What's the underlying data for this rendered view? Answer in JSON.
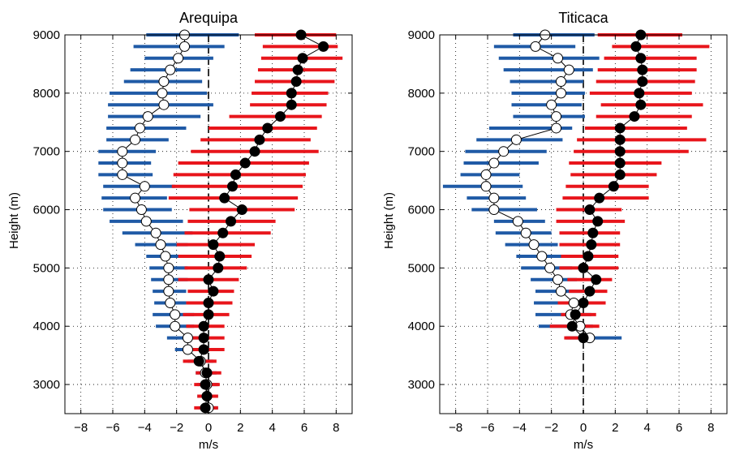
{
  "chart_data": [
    {
      "type": "scatter",
      "title": "Arequipa",
      "xlabel": "m/s",
      "ylabel": "Height (m)",
      "xlim": [
        -9,
        9
      ],
      "ylim": [
        2500,
        9000
      ],
      "xticks": [
        -8,
        -6,
        -4,
        -2,
        0,
        2,
        4,
        6,
        8
      ],
      "yticks": [
        3000,
        4000,
        5000,
        6000,
        7000,
        8000,
        9000
      ],
      "grid": true,
      "zero_line": "dashed",
      "series": [
        {
          "style": "open-circles-with-blue-bars",
          "color": "#1f5aa6",
          "points": [
            {
              "y": 9000,
              "x": -1.5,
              "lo": -3.9,
              "hi": 1.9
            },
            {
              "y": 8800,
              "x": -1.5,
              "lo": -4.7,
              "hi": 1.0
            },
            {
              "y": 8600,
              "x": -1.9,
              "lo": -4.0,
              "hi": 0.3
            },
            {
              "y": 8400,
              "x": -2.4,
              "lo": -4.9,
              "hi": -0.5
            },
            {
              "y": 8200,
              "x": -2.8,
              "lo": -5.3,
              "hi": -0.4
            },
            {
              "y": 8000,
              "x": -2.9,
              "lo": -6.2,
              "hi": -0.1
            },
            {
              "y": 7800,
              "x": -2.8,
              "lo": -6.3,
              "hi": 0.3
            },
            {
              "y": 7600,
              "x": -3.8,
              "lo": -6.3,
              "hi": -0.5
            },
            {
              "y": 7400,
              "x": -4.3,
              "lo": -6.4,
              "hi": -1.4
            },
            {
              "y": 7200,
              "x": -4.6,
              "lo": -6.4,
              "hi": -2.5
            },
            {
              "y": 7000,
              "x": -5.4,
              "lo": -6.9,
              "hi": -3.3
            },
            {
              "y": 6800,
              "x": -5.4,
              "lo": -6.9,
              "hi": -3.6
            },
            {
              "y": 6600,
              "x": -5.4,
              "lo": -6.9,
              "hi": -3.5
            },
            {
              "y": 6400,
              "x": -4.0,
              "lo": -6.6,
              "hi": -2.1
            },
            {
              "y": 6200,
              "x": -4.6,
              "lo": -6.7,
              "hi": -2.6
            },
            {
              "y": 6000,
              "x": -4.2,
              "lo": -6.6,
              "hi": -2.3
            },
            {
              "y": 5800,
              "x": -3.9,
              "lo": -6.2,
              "hi": -1.6
            },
            {
              "y": 5600,
              "x": -3.3,
              "lo": -5.4,
              "hi": -1.0
            },
            {
              "y": 5400,
              "x": -3.0,
              "lo": -4.6,
              "hi": -1.3
            },
            {
              "y": 5200,
              "x": -2.7,
              "lo": -3.9,
              "hi": -1.4
            },
            {
              "y": 5000,
              "x": -2.5,
              "lo": -3.7,
              "hi": -1.3
            },
            {
              "y": 4800,
              "x": -2.5,
              "lo": -3.6,
              "hi": -1.3
            },
            {
              "y": 4600,
              "x": -2.5,
              "lo": -3.5,
              "hi": -1.4
            },
            {
              "y": 4400,
              "x": -2.4,
              "lo": -3.4,
              "hi": -1.4
            },
            {
              "y": 4200,
              "x": -2.1,
              "lo": -3.5,
              "hi": -0.9
            },
            {
              "y": 4000,
              "x": -2.1,
              "lo": -3.3,
              "hi": -0.9
            },
            {
              "y": 3800,
              "x": -1.3,
              "lo": -2.6,
              "hi": -0.2
            },
            {
              "y": 3600,
              "x": -1.3,
              "lo": -2.1,
              "hi": -0.5
            },
            {
              "y": 3400,
              "x": -0.5,
              "lo": -1.3,
              "hi": 0.3
            },
            {
              "y": 3200,
              "x": -0.2,
              "lo": -0.8,
              "hi": 0.5
            },
            {
              "y": 3000,
              "x": -0.1,
              "lo": -0.7,
              "hi": 0.6
            },
            {
              "y": 2800,
              "x": -0.1,
              "lo": -0.7,
              "hi": 0.6
            },
            {
              "y": 2600,
              "x": 0.0,
              "lo": -0.6,
              "hi": 0.6
            }
          ]
        },
        {
          "style": "filled-circles-with-red-bars",
          "color": "#e8151b",
          "points": [
            {
              "y": 9000,
              "x": 5.8,
              "lo": 2.9,
              "hi": 8.0
            },
            {
              "y": 8800,
              "x": 7.2,
              "lo": 3.4,
              "hi": 8.1
            },
            {
              "y": 8600,
              "x": 5.9,
              "lo": 3.3,
              "hi": 8.4
            },
            {
              "y": 8400,
              "x": 5.6,
              "lo": 3.1,
              "hi": 8.0
            },
            {
              "y": 8200,
              "x": 5.5,
              "lo": 2.9,
              "hi": 7.9
            },
            {
              "y": 8000,
              "x": 5.2,
              "lo": 2.7,
              "hi": 7.5
            },
            {
              "y": 7800,
              "x": 5.2,
              "lo": 2.6,
              "hi": 7.4
            },
            {
              "y": 7600,
              "x": 4.5,
              "lo": 1.3,
              "hi": 7.1
            },
            {
              "y": 7400,
              "x": 3.7,
              "lo": 0.0,
              "hi": 6.8
            },
            {
              "y": 7200,
              "x": 3.2,
              "lo": -0.5,
              "hi": 6.4
            },
            {
              "y": 7000,
              "x": 2.9,
              "lo": -1.1,
              "hi": 6.9
            },
            {
              "y": 6800,
              "x": 2.3,
              "lo": -1.9,
              "hi": 6.3
            },
            {
              "y": 6600,
              "x": 1.7,
              "lo": -2.2,
              "hi": 6.1
            },
            {
              "y": 6400,
              "x": 1.5,
              "lo": -2.3,
              "hi": 5.9
            },
            {
              "y": 6200,
              "x": 1.0,
              "lo": -2.5,
              "hi": 5.6
            },
            {
              "y": 6000,
              "x": 2.1,
              "lo": -1.2,
              "hi": 5.4
            },
            {
              "y": 5800,
              "x": 1.4,
              "lo": -1.3,
              "hi": 4.2
            },
            {
              "y": 5600,
              "x": 0.9,
              "lo": -1.5,
              "hi": 3.9
            },
            {
              "y": 5400,
              "x": 0.3,
              "lo": -2.0,
              "hi": 2.9
            },
            {
              "y": 5200,
              "x": 0.7,
              "lo": -1.9,
              "hi": 2.7
            },
            {
              "y": 5000,
              "x": 0.6,
              "lo": -1.5,
              "hi": 2.4
            },
            {
              "y": 4800,
              "x": 0.0,
              "lo": -1.9,
              "hi": 1.9
            },
            {
              "y": 4600,
              "x": 0.3,
              "lo": -1.3,
              "hi": 1.6
            },
            {
              "y": 4400,
              "x": 0.0,
              "lo": -1.4,
              "hi": 1.5
            },
            {
              "y": 4200,
              "x": 0.0,
              "lo": -1.6,
              "hi": 1.3
            },
            {
              "y": 4000,
              "x": -0.3,
              "lo": -1.4,
              "hi": 1.0
            },
            {
              "y": 3800,
              "x": -0.3,
              "lo": -1.2,
              "hi": 1.0
            },
            {
              "y": 3600,
              "x": -0.3,
              "lo": -1.3,
              "hi": 1.0
            },
            {
              "y": 3400,
              "x": -0.6,
              "lo": -1.6,
              "hi": 0.5
            },
            {
              "y": 3200,
              "x": -0.1,
              "lo": -0.8,
              "hi": 0.8
            },
            {
              "y": 3000,
              "x": -0.2,
              "lo": -0.9,
              "hi": 0.7
            },
            {
              "y": 2800,
              "x": -0.1,
              "lo": -0.7,
              "hi": 0.6
            },
            {
              "y": 2600,
              "x": -0.2,
              "lo": -0.9,
              "hi": 0.6
            }
          ]
        }
      ]
    },
    {
      "type": "scatter",
      "title": "Titicaca",
      "xlabel": "m/s",
      "ylabel": "Height (m)",
      "xlim": [
        -9,
        9
      ],
      "ylim": [
        2500,
        9000
      ],
      "xticks": [
        -8,
        -6,
        -4,
        -2,
        0,
        2,
        4,
        6,
        8
      ],
      "yticks": [
        3000,
        4000,
        5000,
        6000,
        7000,
        8000,
        9000
      ],
      "grid": true,
      "zero_line": "dashed",
      "series": [
        {
          "style": "open-circles-with-blue-bars",
          "color": "#1f5aa6",
          "points": [
            {
              "y": 9000,
              "x": -2.4,
              "lo": -4.4,
              "hi": 0.7
            },
            {
              "y": 8800,
              "x": -3.0,
              "lo": -5.6,
              "hi": -0.5
            },
            {
              "y": 8600,
              "x": -1.6,
              "lo": -5.3,
              "hi": 1.0
            },
            {
              "y": 8400,
              "x": -0.9,
              "lo": -5.0,
              "hi": 0.6
            },
            {
              "y": 8200,
              "x": -1.4,
              "lo": -4.6,
              "hi": 0.0
            },
            {
              "y": 8000,
              "x": -1.4,
              "lo": -4.5,
              "hi": 0.1
            },
            {
              "y": 7800,
              "x": -2.0,
              "lo": -4.5,
              "hi": -0.1
            },
            {
              "y": 7600,
              "x": -1.7,
              "lo": -4.4,
              "hi": 0.1
            },
            {
              "y": 7400,
              "x": -1.7,
              "lo": -5.9,
              "hi": -0.7
            },
            {
              "y": 7200,
              "x": -4.2,
              "lo": -6.7,
              "hi": -1.3
            },
            {
              "y": 7000,
              "x": -5.0,
              "lo": -7.4,
              "hi": -2.3
            },
            {
              "y": 6800,
              "x": -5.6,
              "lo": -7.5,
              "hi": -2.8
            },
            {
              "y": 6600,
              "x": -6.1,
              "lo": -7.7,
              "hi": -4.0
            },
            {
              "y": 6400,
              "x": -6.1,
              "lo": -8.8,
              "hi": -3.8
            },
            {
              "y": 6200,
              "x": -5.6,
              "lo": -7.3,
              "hi": -3.6
            },
            {
              "y": 6000,
              "x": -5.6,
              "lo": -7.0,
              "hi": -2.9
            },
            {
              "y": 5800,
              "x": -4.1,
              "lo": -5.6,
              "hi": -2.4
            },
            {
              "y": 5600,
              "x": -3.6,
              "lo": -5.5,
              "hi": -2.0
            },
            {
              "y": 5400,
              "x": -3.1,
              "lo": -4.9,
              "hi": -1.6
            },
            {
              "y": 5200,
              "x": -2.6,
              "lo": -4.2,
              "hi": -1.2
            },
            {
              "y": 5000,
              "x": -2.1,
              "lo": -3.9,
              "hi": -0.7
            },
            {
              "y": 4800,
              "x": -1.6,
              "lo": -3.3,
              "hi": -0.4
            },
            {
              "y": 4600,
              "x": -1.4,
              "lo": -3.0,
              "hi": 0.0
            },
            {
              "y": 4400,
              "x": -0.6,
              "lo": -3.1,
              "hi": 0.4
            },
            {
              "y": 4200,
              "x": -0.8,
              "lo": -3.0,
              "hi": 0.5
            },
            {
              "y": 4000,
              "x": -0.2,
              "lo": -2.8,
              "hi": 0.6
            },
            {
              "y": 3800,
              "x": 0.4,
              "lo": -1.1,
              "hi": 2.4
            }
          ]
        },
        {
          "style": "filled-circles-with-red-bars",
          "color": "#e8151b",
          "points": [
            {
              "y": 9000,
              "x": 3.6,
              "lo": 0.9,
              "hi": 6.2
            },
            {
              "y": 8800,
              "x": 3.3,
              "lo": 1.8,
              "hi": 7.9
            },
            {
              "y": 8600,
              "x": 3.6,
              "lo": 1.3,
              "hi": 7.1
            },
            {
              "y": 8400,
              "x": 3.7,
              "lo": 0.9,
              "hi": 7.1
            },
            {
              "y": 8200,
              "x": 3.7,
              "lo": 0.8,
              "hi": 7.0
            },
            {
              "y": 8000,
              "x": 3.5,
              "lo": 0.4,
              "hi": 6.8
            },
            {
              "y": 7800,
              "x": 3.6,
              "lo": 1.1,
              "hi": 7.5
            },
            {
              "y": 7600,
              "x": 3.2,
              "lo": 0.8,
              "hi": 6.8
            },
            {
              "y": 7400,
              "x": 2.3,
              "lo": 0.1,
              "hi": 6.5
            },
            {
              "y": 7200,
              "x": 2.3,
              "lo": -0.4,
              "hi": 7.7
            },
            {
              "y": 7000,
              "x": 2.3,
              "lo": -0.6,
              "hi": 6.6
            },
            {
              "y": 6800,
              "x": 2.3,
              "lo": -0.9,
              "hi": 4.9
            },
            {
              "y": 6600,
              "x": 2.3,
              "lo": -0.8,
              "hi": 4.6
            },
            {
              "y": 6400,
              "x": 1.9,
              "lo": -1.1,
              "hi": 4.1
            },
            {
              "y": 6200,
              "x": 1.0,
              "lo": -1.3,
              "hi": 4.1
            },
            {
              "y": 6000,
              "x": 0.4,
              "lo": -1.7,
              "hi": 2.4
            },
            {
              "y": 5800,
              "x": 0.9,
              "lo": -1.7,
              "hi": 2.6
            },
            {
              "y": 5600,
              "x": 0.6,
              "lo": -1.5,
              "hi": 2.3
            },
            {
              "y": 5400,
              "x": 0.5,
              "lo": -1.5,
              "hi": 2.3
            },
            {
              "y": 5200,
              "x": 0.3,
              "lo": -1.4,
              "hi": 2.2
            },
            {
              "y": 5000,
              "x": 0.0,
              "lo": -1.5,
              "hi": 2.2
            },
            {
              "y": 4800,
              "x": 0.8,
              "lo": -1.0,
              "hi": 1.8
            },
            {
              "y": 4600,
              "x": 0.4,
              "lo": -0.9,
              "hi": 1.5
            },
            {
              "y": 4400,
              "x": 0.0,
              "lo": -1.6,
              "hi": 1.4
            },
            {
              "y": 4200,
              "x": -0.5,
              "lo": -1.4,
              "hi": 0.8
            },
            {
              "y": 4000,
              "x": -0.7,
              "lo": -2.1,
              "hi": 1.0
            },
            {
              "y": 3800,
              "x": 0.0,
              "lo": -1.2,
              "hi": 0.7
            }
          ]
        }
      ]
    }
  ]
}
